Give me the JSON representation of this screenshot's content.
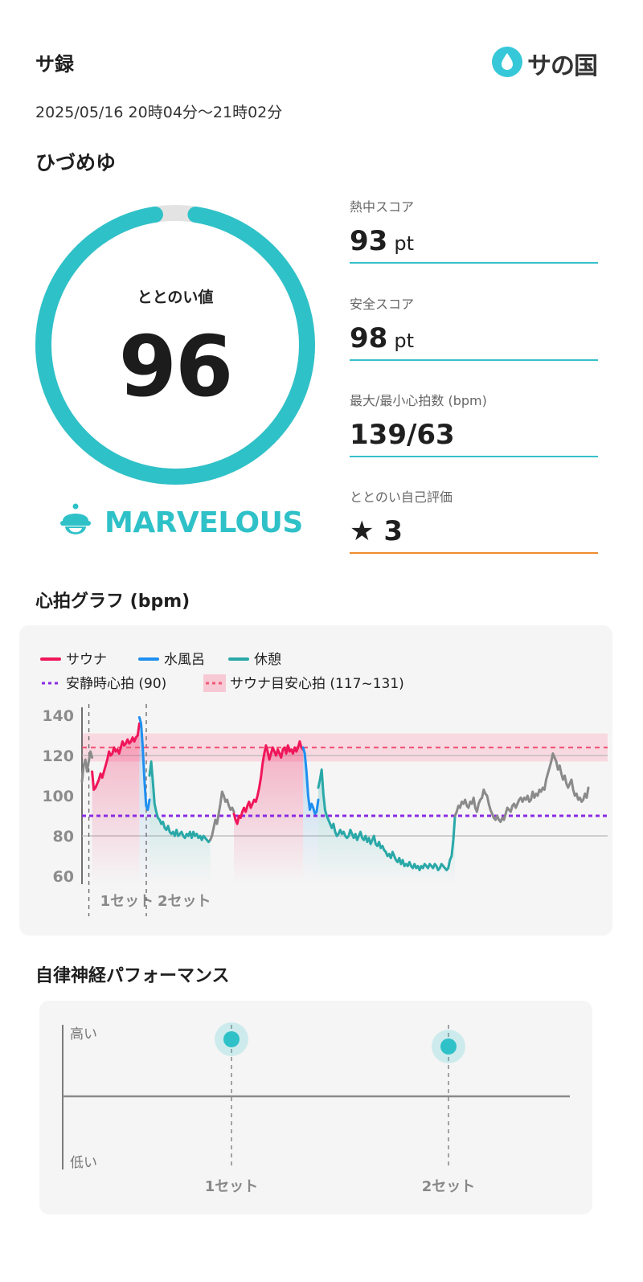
{
  "header": {
    "title": "サ録",
    "logo_text": "サの国",
    "datetime": "2025/05/16 20時04分～21時02分",
    "facility": "ひづめゆ"
  },
  "totonoi": {
    "label": "ととのい値",
    "value": "96",
    "fraction": 0.96,
    "rank": "MARVELOUS",
    "ring_color": "#2fc1c8",
    "track_color": "#e3e3e3"
  },
  "stats": {
    "heat": {
      "label": "熱中スコア",
      "value": "93",
      "unit": "pt"
    },
    "safety": {
      "label": "安全スコア",
      "value": "98",
      "unit": "pt"
    },
    "hr_range": {
      "label": "最大/最小心拍数 (bpm)",
      "value": "139/63"
    },
    "self_eval": {
      "label": "ととのい自己評価",
      "star": "★",
      "value": "3"
    }
  },
  "hr_section_title": "心拍グラフ (bpm)",
  "ans_section_title": "自律神経パフォーマンス",
  "chart_data": [
    {
      "type": "line",
      "title": "心拍グラフ (bpm)",
      "ylim": [
        60,
        140
      ],
      "yticks": [
        "140",
        "120",
        "100",
        "80",
        "60"
      ],
      "legend": [
        {
          "name": "サウナ",
          "color": "#f0165a"
        },
        {
          "name": "水風呂",
          "color": "#1f8ff0"
        },
        {
          "name": "休憩",
          "color": "#2aa8a8"
        },
        {
          "name": "安静時心拍 (90)",
          "color": "#8a2be2"
        },
        {
          "name": "サウナ目安心拍 (117~131)",
          "color": "#f05a78"
        }
      ],
      "resting_hr": 90,
      "target_line": 124,
      "target_band": [
        117,
        131
      ],
      "sets": [
        {
          "label": "1セット",
          "t": 6
        },
        {
          "label": "2セット",
          "t": 40
        }
      ],
      "series": [
        {
          "phase": "other",
          "x": [
            0,
            1,
            2,
            3,
            4,
            5,
            6
          ],
          "y": [
            107,
            115,
            118,
            112,
            117,
            122,
            119
          ]
        },
        {
          "phase": "sauna",
          "x": [
            6,
            7,
            8,
            9,
            10,
            11,
            12,
            13,
            14,
            15,
            16,
            17,
            18,
            19,
            20,
            21,
            22,
            23,
            24,
            25,
            26,
            27,
            28,
            29,
            30,
            31,
            32,
            33,
            34
          ],
          "y": [
            112,
            103,
            104,
            106,
            108,
            111,
            109,
            112,
            115,
            118,
            122,
            120,
            121,
            124,
            122,
            123,
            121,
            124,
            127,
            125,
            126,
            128,
            126,
            127,
            129,
            127,
            129,
            130,
            136
          ]
        },
        {
          "phase": "cold",
          "x": [
            34,
            35,
            36,
            37,
            38,
            39,
            40
          ],
          "y": [
            139,
            136,
            124,
            108,
            95,
            93,
            98
          ]
        },
        {
          "phase": "rest",
          "x": [
            40,
            41,
            42,
            43,
            44,
            45,
            46,
            47,
            48,
            49,
            50,
            51,
            52,
            53,
            54,
            55,
            56,
            57,
            58,
            59,
            60,
            61,
            62,
            63,
            64,
            65,
            66,
            67,
            68,
            69,
            70,
            71,
            72,
            73,
            74,
            75,
            76
          ],
          "y": [
            110,
            117,
            107,
            96,
            92,
            89,
            88,
            86,
            87,
            84,
            83,
            85,
            82,
            81,
            82,
            80,
            83,
            80,
            81,
            82,
            80,
            79,
            81,
            80,
            82,
            79,
            82,
            80,
            81,
            79,
            80,
            78,
            80,
            79,
            78,
            77,
            78
          ]
        },
        {
          "phase": "other",
          "x": [
            76,
            77,
            78,
            79,
            80,
            81,
            82,
            83,
            84,
            85,
            86,
            87,
            88,
            89,
            90
          ],
          "y": [
            78,
            80,
            84,
            88,
            86,
            91,
            96,
            102,
            100,
            97,
            98,
            95,
            93,
            94,
            92
          ]
        },
        {
          "phase": "sauna",
          "x": [
            90,
            91,
            92,
            93,
            94,
            95,
            96,
            97,
            98,
            99,
            100,
            101,
            102,
            103,
            104,
            105,
            106,
            107,
            108,
            109,
            110,
            111,
            112,
            113,
            114,
            115,
            116,
            117,
            118,
            119,
            120,
            121,
            122,
            123,
            124,
            125,
            126,
            127,
            128,
            129,
            130,
            131
          ],
          "y": [
            91,
            88,
            86,
            90,
            89,
            92,
            94,
            92,
            95,
            97,
            94,
            96,
            98,
            97,
            100,
            104,
            109,
            116,
            121,
            125,
            122,
            118,
            121,
            124,
            122,
            120,
            123,
            121,
            119,
            123,
            124,
            121,
            125,
            122,
            123,
            121,
            124,
            122,
            124,
            127,
            124,
            123
          ]
        },
        {
          "phase": "cold",
          "x": [
            131,
            132,
            133,
            134,
            135,
            136,
            137,
            138,
            139,
            140
          ],
          "y": [
            124,
            121,
            112,
            100,
            93,
            96,
            94,
            91,
            92,
            98
          ]
        },
        {
          "phase": "rest",
          "x": [
            140,
            141,
            142,
            143,
            144,
            145,
            146,
            147,
            148,
            149,
            150,
            151,
            152,
            153,
            154,
            155,
            156,
            157,
            158,
            159,
            160,
            161,
            162,
            163,
            164,
            165,
            166,
            167,
            168,
            169,
            170,
            171,
            172,
            173,
            174,
            175,
            176,
            177,
            178,
            179,
            180,
            181,
            182,
            183,
            184,
            185,
            186,
            187,
            188,
            189,
            190,
            191,
            192,
            193,
            194,
            195,
            196,
            197,
            198,
            199,
            200,
            201,
            202,
            203,
            204,
            205,
            206,
            207,
            208,
            209,
            210,
            211,
            212,
            213,
            214,
            215,
            216,
            217,
            218,
            219,
            220,
            221
          ],
          "y": [
            104,
            108,
            113,
            101,
            93,
            90,
            88,
            86,
            84,
            86,
            82,
            80,
            81,
            83,
            81,
            82,
            80,
            79,
            80,
            83,
            81,
            79,
            81,
            78,
            80,
            82,
            79,
            78,
            80,
            77,
            79,
            76,
            78,
            80,
            76,
            75,
            77,
            74,
            75,
            73,
            72,
            70,
            71,
            69,
            72,
            70,
            68,
            67,
            69,
            66,
            68,
            65,
            66,
            65,
            67,
            65,
            64,
            66,
            64,
            65,
            63,
            65,
            64,
            66,
            65,
            64,
            66,
            65,
            64,
            66,
            65,
            63,
            64,
            66,
            65,
            64,
            63,
            64,
            68,
            70,
            78,
            90
          ]
        },
        {
          "phase": "other",
          "x": [
            221,
            222,
            223,
            224,
            225,
            226,
            227,
            228,
            229,
            230,
            231,
            232,
            233,
            234,
            235,
            236,
            237,
            238,
            239,
            240,
            241,
            242,
            243,
            244,
            245,
            246,
            247,
            248,
            249,
            250,
            251,
            252,
            253,
            254,
            255,
            256,
            257,
            258,
            259,
            260,
            261,
            262,
            263,
            264,
            265,
            266,
            267,
            268,
            269,
            270,
            271,
            272,
            273,
            274,
            275,
            276,
            277,
            278,
            279,
            280,
            281,
            282,
            283,
            284,
            285,
            286,
            287,
            288,
            289,
            290,
            291,
            292,
            293,
            294,
            295,
            296,
            297,
            298,
            299,
            300
          ],
          "y": [
            90,
            92,
            95,
            94,
            97,
            96,
            98,
            95,
            94,
            97,
            96,
            99,
            94,
            92,
            96,
            98,
            99,
            103,
            101,
            100,
            96,
            93,
            91,
            89,
            88,
            90,
            88,
            87,
            89,
            88,
            91,
            94,
            93,
            92,
            95,
            96,
            94,
            96,
            98,
            99,
            97,
            99,
            98,
            100,
            97,
            98,
            102,
            99,
            101,
            100,
            103,
            102,
            104,
            103,
            108,
            111,
            114,
            117,
            121,
            119,
            117,
            113,
            115,
            111,
            108,
            110,
            106,
            104,
            106,
            108,
            103,
            100,
            101,
            98,
            99,
            97,
            98,
            101,
            99,
            104
          ]
        }
      ]
    },
    {
      "type": "scatter",
      "title": "自律神経パフォーマンス",
      "ylabels": {
        "high": "高い",
        "low": "低い"
      },
      "ylim": [
        0,
        1
      ],
      "categories": [
        "1セット",
        "2セット"
      ],
      "values": [
        0.9,
        0.85
      ],
      "color": "#2fc1c8"
    }
  ]
}
